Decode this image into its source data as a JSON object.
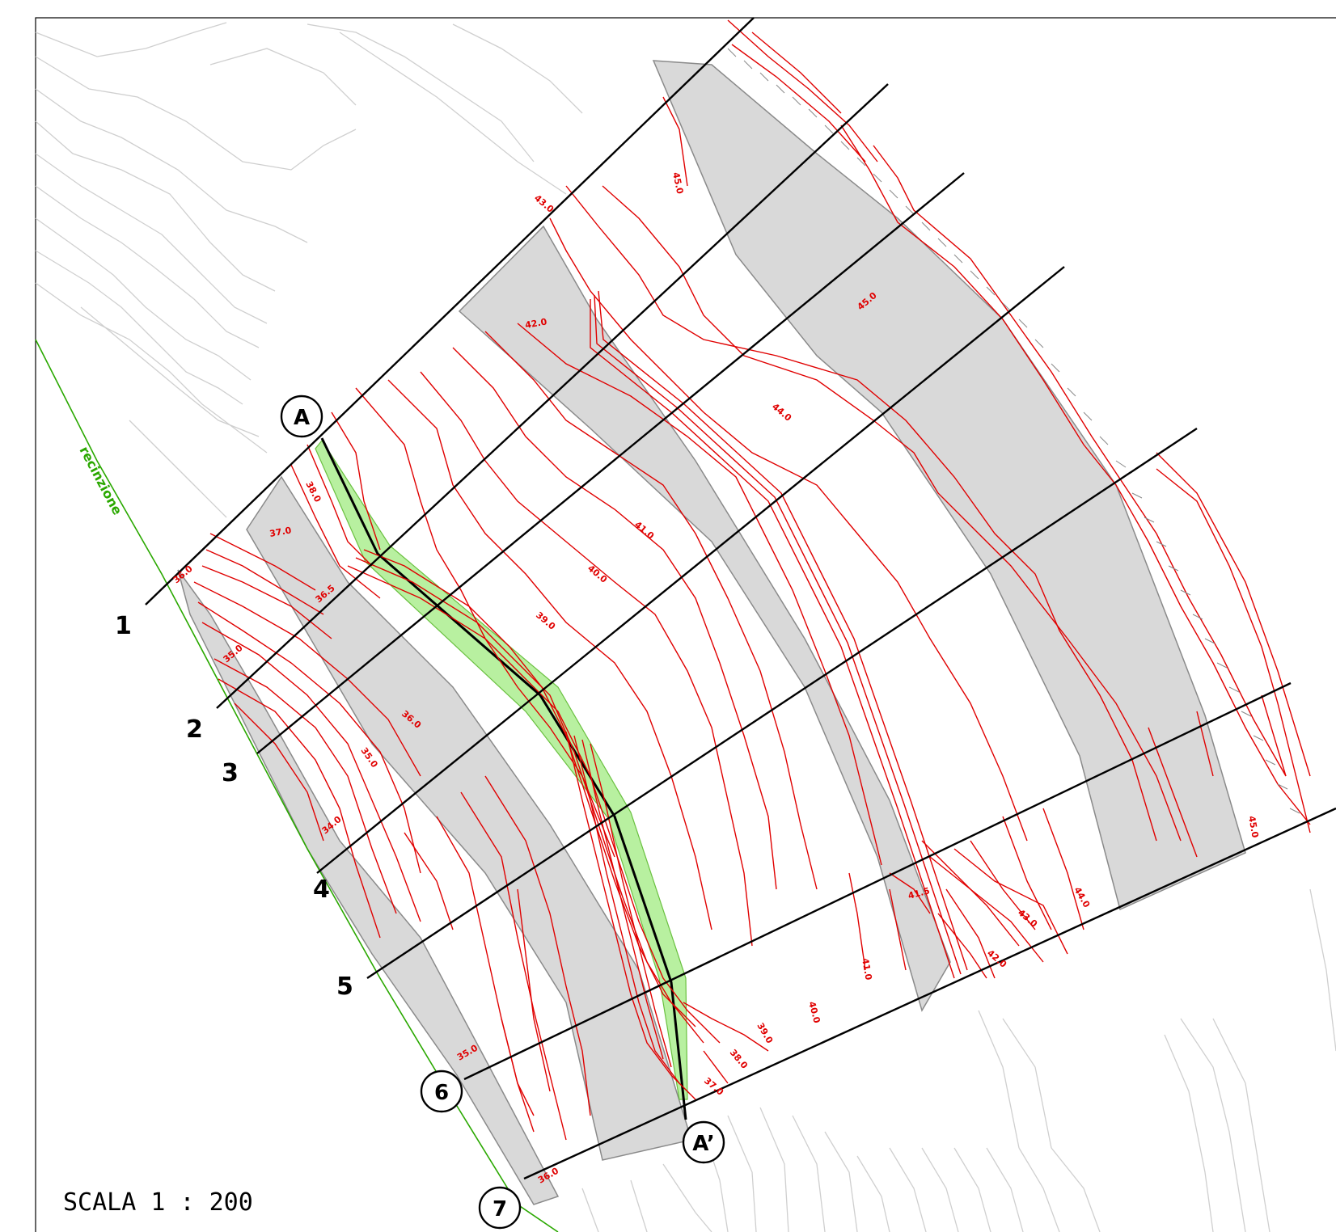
{
  "drawing": {
    "scale_label": "SCALA 1 : 200",
    "fence_label": "recinzione",
    "sections": [
      "1",
      "2",
      "3",
      "4",
      "5",
      "6",
      "7"
    ],
    "section_markers": {
      "start": "A",
      "end": "A’"
    },
    "elevation_labels": [
      "45.0",
      "43.0",
      "42.0",
      "45.0",
      "44.0",
      "41.0",
      "40.0",
      "39.0",
      "38.0",
      "37.0",
      "36.5",
      "36.0",
      "35.0",
      "36.0",
      "35.0",
      "34.0",
      "44.0",
      "43.0",
      "41.5",
      "42.0",
      "41.0",
      "40.0",
      "39.0",
      "38.0",
      "37.0",
      "35.0",
      "36.0",
      "45.0"
    ],
    "colors": {
      "contour_project": "#e00000",
      "contour_existing": "#c8c8c8",
      "terrace_fill": "#d9d9d9",
      "channel_fill": "#b8f0a0",
      "fence": "#2aa800",
      "section_line": "#000000"
    }
  }
}
